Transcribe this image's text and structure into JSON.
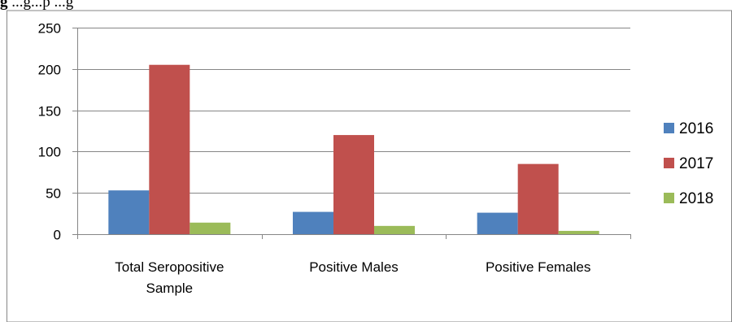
{
  "caption": {
    "prefix": "g",
    "text": "     ...g...p                              ...g"
  },
  "chart_data": {
    "type": "bar",
    "categories": [
      "Total Seropositive Sample",
      "Positive Males",
      "Positive Females"
    ],
    "category_lines": [
      [
        "Total Seropositive",
        "Sample"
      ],
      [
        "Positive Males"
      ],
      [
        "Positive Females"
      ]
    ],
    "series": [
      {
        "name": "2016",
        "values": [
          53,
          27,
          26
        ],
        "color": "#4f81bd"
      },
      {
        "name": "2017",
        "values": [
          205,
          120,
          85
        ],
        "color": "#c0504d"
      },
      {
        "name": "2018",
        "values": [
          14,
          10,
          4
        ],
        "color": "#9bbb59"
      }
    ],
    "ylim": [
      0,
      250
    ],
    "yticks": [
      0,
      50,
      100,
      150,
      200,
      250
    ],
    "grid": true,
    "legend": "right"
  }
}
